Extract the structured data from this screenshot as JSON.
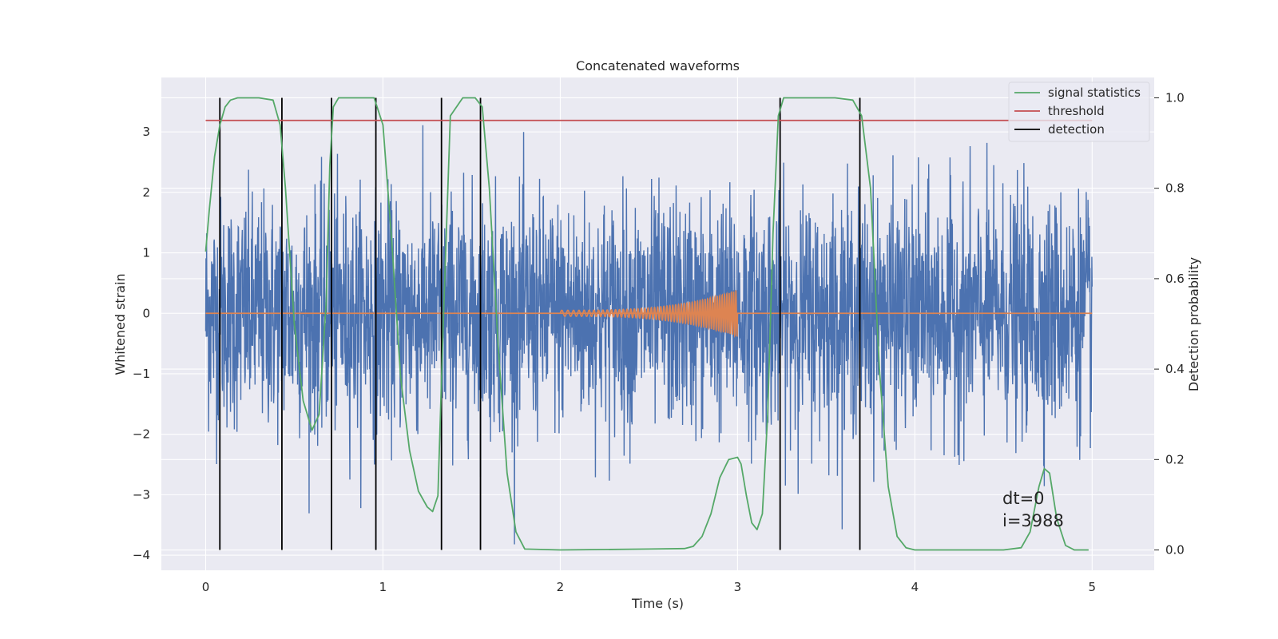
{
  "chart_data": {
    "type": "line",
    "title": "Concatenated waveforms",
    "xlabel": "Time (s)",
    "ylabel": "Whitened strain",
    "y2label": "Detection probability",
    "xlim": [
      -0.25,
      5.35
    ],
    "ylim": [
      -4.25,
      3.9
    ],
    "y2lim": [
      -0.045,
      1.045
    ],
    "xticks": [
      0,
      1,
      2,
      3,
      4,
      5
    ],
    "yticks": [
      -4,
      -3,
      -2,
      -1,
      0,
      1,
      2,
      3
    ],
    "y2ticks": [
      0.0,
      0.2,
      0.4,
      0.6,
      0.8,
      1.0
    ],
    "grid": true,
    "legend_position": "top-right",
    "colors": {
      "background": "#eaeaf2",
      "grid": "#ffffff",
      "strain": "#4c72b0",
      "template": "#dd8452",
      "signal_statistics": "#55a868",
      "threshold": "#c44e52",
      "detection": "#000000"
    },
    "series": [
      {
        "name": "strain",
        "kind": "noise",
        "x_range": [
          0,
          5
        ],
        "y_range": [
          -4.05,
          3.55
        ]
      },
      {
        "name": "template",
        "kind": "chirp",
        "x_range": [
          2.0,
          3.0
        ],
        "amplitude_range": [
          0.05,
          0.38
        ]
      },
      {
        "name": "signal statistics",
        "axis": "right",
        "x": [
          0.0,
          0.02,
          0.05,
          0.08,
          0.11,
          0.14,
          0.18,
          0.22,
          0.3,
          0.38,
          0.42,
          0.45,
          0.5,
          0.55,
          0.6,
          0.64,
          0.68,
          0.7,
          0.72,
          0.75,
          0.8,
          0.95,
          1.0,
          1.05,
          1.1,
          1.15,
          1.2,
          1.25,
          1.28,
          1.31,
          1.34,
          1.38,
          1.45,
          1.52,
          1.56,
          1.6,
          1.65,
          1.7,
          1.75,
          1.8,
          2.0,
          2.5,
          2.7,
          2.75,
          2.8,
          2.85,
          2.9,
          2.95,
          3.0,
          3.02,
          3.05,
          3.08,
          3.11,
          3.14,
          3.17,
          3.2,
          3.23,
          3.26,
          3.3,
          3.4,
          3.55,
          3.65,
          3.7,
          3.75,
          3.8,
          3.85,
          3.9,
          3.95,
          4.0,
          4.2,
          4.5,
          4.6,
          4.65,
          4.7,
          4.73,
          4.76,
          4.8,
          4.85,
          4.9,
          4.98
        ],
        "values": [
          0.66,
          0.75,
          0.87,
          0.94,
          0.98,
          0.995,
          1.0,
          1.0,
          1.0,
          0.995,
          0.94,
          0.8,
          0.5,
          0.33,
          0.265,
          0.3,
          0.55,
          0.85,
          0.98,
          1.0,
          1.0,
          1.0,
          0.94,
          0.68,
          0.38,
          0.22,
          0.13,
          0.095,
          0.085,
          0.12,
          0.5,
          0.96,
          1.0,
          1.0,
          0.98,
          0.8,
          0.45,
          0.17,
          0.04,
          0.002,
          0.0,
          0.002,
          0.003,
          0.008,
          0.03,
          0.08,
          0.16,
          0.2,
          0.205,
          0.19,
          0.12,
          0.06,
          0.045,
          0.08,
          0.3,
          0.7,
          0.96,
          1.0,
          1.0,
          1.0,
          1.0,
          0.995,
          0.96,
          0.8,
          0.4,
          0.14,
          0.03,
          0.005,
          0.0,
          0.0,
          0.0,
          0.005,
          0.04,
          0.14,
          0.18,
          0.17,
          0.07,
          0.01,
          0.0,
          0.0
        ]
      },
      {
        "name": "threshold",
        "axis": "right",
        "x": [
          0,
          5
        ],
        "values": [
          0.95,
          0.95
        ]
      },
      {
        "name": "detection",
        "axis": "right",
        "x": [
          0.08,
          0.43,
          0.71,
          0.96,
          1.33,
          1.55,
          3.24,
          3.69
        ],
        "y_range": [
          0.0,
          1.0
        ]
      }
    ],
    "legend": [
      "signal statistics",
      "threshold",
      "detection"
    ],
    "annotations": [
      "dt=0",
      "i=3988"
    ]
  }
}
